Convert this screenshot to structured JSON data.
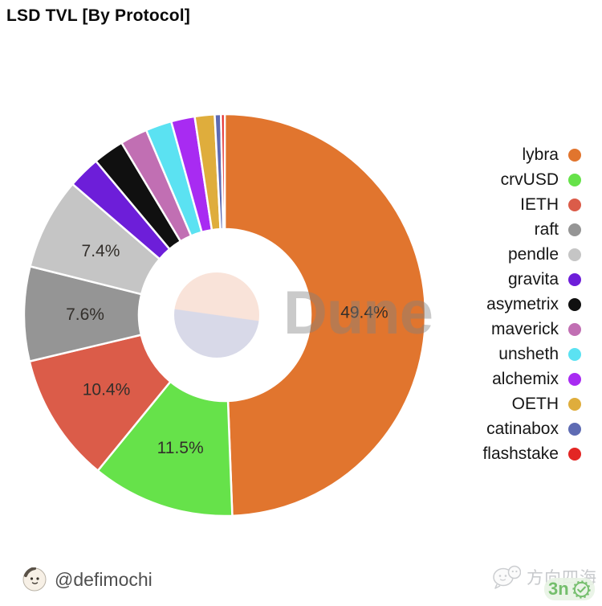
{
  "title": "LSD TVL [By Protocol]",
  "watermark_brand": "Dune",
  "footer": {
    "author_handle": "@defimochi",
    "source_name": "方向四海",
    "badge_text": "3n"
  },
  "center_logo": {
    "top_color": "#F9E3D9",
    "bottom_color": "#D8D9E8"
  },
  "chart_data": {
    "type": "pie",
    "donut": true,
    "title": "LSD TVL [By Protocol]",
    "legend_position": "right",
    "label_threshold_pct": 5,
    "labels_shown": [
      "49.4%",
      "11.5%",
      "10.4%",
      "7.6%",
      "7.4%"
    ],
    "series": [
      {
        "name": "lybra",
        "value_pct": 49.4,
        "color": "#E1752E"
      },
      {
        "name": "crvUSD",
        "value_pct": 11.5,
        "color": "#66E24A"
      },
      {
        "name": "IETH",
        "value_pct": 10.4,
        "color": "#DB5C49"
      },
      {
        "name": "raft",
        "value_pct": 7.6,
        "color": "#959595"
      },
      {
        "name": "pendle",
        "value_pct": 7.4,
        "color": "#C5C5C5"
      },
      {
        "name": "gravita",
        "value_pct": 2.6,
        "color": "#6D1ED9"
      },
      {
        "name": "asymetrix",
        "value_pct": 2.5,
        "color": "#101010"
      },
      {
        "name": "maverick",
        "value_pct": 2.2,
        "color": "#C16FB3"
      },
      {
        "name": "unsheth",
        "value_pct": 2.1,
        "color": "#5BE2F2"
      },
      {
        "name": "alchemix",
        "value_pct": 1.9,
        "color": "#A82BF2"
      },
      {
        "name": "OETH",
        "value_pct": 1.6,
        "color": "#DFAD3C"
      },
      {
        "name": "catinabox",
        "value_pct": 0.5,
        "color": "#5E6BB3"
      },
      {
        "name": "flashstake",
        "value_pct": 0.3,
        "color": "#E32624"
      }
    ]
  }
}
